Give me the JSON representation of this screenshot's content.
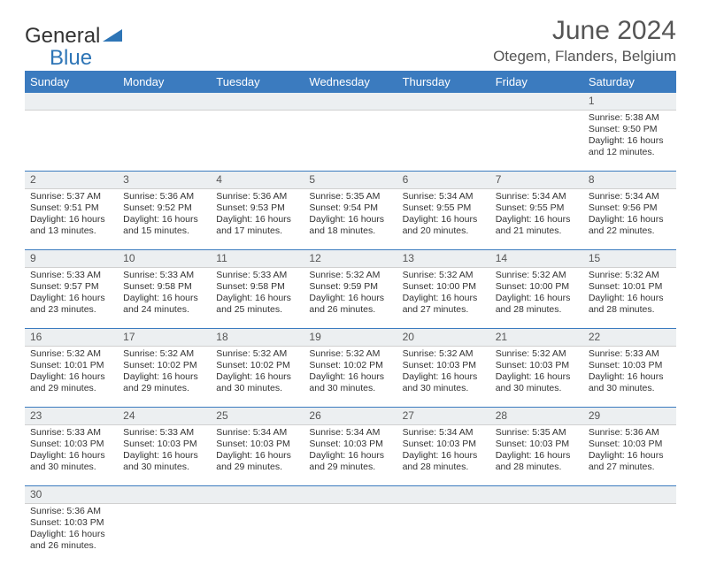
{
  "logo": {
    "text1": "General",
    "text2": "Blue"
  },
  "title": "June 2024",
  "location": "Otegem, Flanders, Belgium",
  "colors": {
    "header_bg": "#3b7bbf",
    "header_text": "#ffffff",
    "daynum_bg": "#eceff1",
    "row_divider": "#3b7bbf",
    "text": "#333333",
    "logo_blue": "#2e75b6"
  },
  "weekdays": [
    "Sunday",
    "Monday",
    "Tuesday",
    "Wednesday",
    "Thursday",
    "Friday",
    "Saturday"
  ],
  "weeks": [
    [
      null,
      null,
      null,
      null,
      null,
      null,
      {
        "n": "1",
        "sr": "5:38 AM",
        "ss": "9:50 PM",
        "dl": "16 hours and 12 minutes."
      }
    ],
    [
      {
        "n": "2",
        "sr": "5:37 AM",
        "ss": "9:51 PM",
        "dl": "16 hours and 13 minutes."
      },
      {
        "n": "3",
        "sr": "5:36 AM",
        "ss": "9:52 PM",
        "dl": "16 hours and 15 minutes."
      },
      {
        "n": "4",
        "sr": "5:36 AM",
        "ss": "9:53 PM",
        "dl": "16 hours and 17 minutes."
      },
      {
        "n": "5",
        "sr": "5:35 AM",
        "ss": "9:54 PM",
        "dl": "16 hours and 18 minutes."
      },
      {
        "n": "6",
        "sr": "5:34 AM",
        "ss": "9:55 PM",
        "dl": "16 hours and 20 minutes."
      },
      {
        "n": "7",
        "sr": "5:34 AM",
        "ss": "9:55 PM",
        "dl": "16 hours and 21 minutes."
      },
      {
        "n": "8",
        "sr": "5:34 AM",
        "ss": "9:56 PM",
        "dl": "16 hours and 22 minutes."
      }
    ],
    [
      {
        "n": "9",
        "sr": "5:33 AM",
        "ss": "9:57 PM",
        "dl": "16 hours and 23 minutes."
      },
      {
        "n": "10",
        "sr": "5:33 AM",
        "ss": "9:58 PM",
        "dl": "16 hours and 24 minutes."
      },
      {
        "n": "11",
        "sr": "5:33 AM",
        "ss": "9:58 PM",
        "dl": "16 hours and 25 minutes."
      },
      {
        "n": "12",
        "sr": "5:32 AM",
        "ss": "9:59 PM",
        "dl": "16 hours and 26 minutes."
      },
      {
        "n": "13",
        "sr": "5:32 AM",
        "ss": "10:00 PM",
        "dl": "16 hours and 27 minutes."
      },
      {
        "n": "14",
        "sr": "5:32 AM",
        "ss": "10:00 PM",
        "dl": "16 hours and 28 minutes."
      },
      {
        "n": "15",
        "sr": "5:32 AM",
        "ss": "10:01 PM",
        "dl": "16 hours and 28 minutes."
      }
    ],
    [
      {
        "n": "16",
        "sr": "5:32 AM",
        "ss": "10:01 PM",
        "dl": "16 hours and 29 minutes."
      },
      {
        "n": "17",
        "sr": "5:32 AM",
        "ss": "10:02 PM",
        "dl": "16 hours and 29 minutes."
      },
      {
        "n": "18",
        "sr": "5:32 AM",
        "ss": "10:02 PM",
        "dl": "16 hours and 30 minutes."
      },
      {
        "n": "19",
        "sr": "5:32 AM",
        "ss": "10:02 PM",
        "dl": "16 hours and 30 minutes."
      },
      {
        "n": "20",
        "sr": "5:32 AM",
        "ss": "10:03 PM",
        "dl": "16 hours and 30 minutes."
      },
      {
        "n": "21",
        "sr": "5:32 AM",
        "ss": "10:03 PM",
        "dl": "16 hours and 30 minutes."
      },
      {
        "n": "22",
        "sr": "5:33 AM",
        "ss": "10:03 PM",
        "dl": "16 hours and 30 minutes."
      }
    ],
    [
      {
        "n": "23",
        "sr": "5:33 AM",
        "ss": "10:03 PM",
        "dl": "16 hours and 30 minutes."
      },
      {
        "n": "24",
        "sr": "5:33 AM",
        "ss": "10:03 PM",
        "dl": "16 hours and 30 minutes."
      },
      {
        "n": "25",
        "sr": "5:34 AM",
        "ss": "10:03 PM",
        "dl": "16 hours and 29 minutes."
      },
      {
        "n": "26",
        "sr": "5:34 AM",
        "ss": "10:03 PM",
        "dl": "16 hours and 29 minutes."
      },
      {
        "n": "27",
        "sr": "5:34 AM",
        "ss": "10:03 PM",
        "dl": "16 hours and 28 minutes."
      },
      {
        "n": "28",
        "sr": "5:35 AM",
        "ss": "10:03 PM",
        "dl": "16 hours and 28 minutes."
      },
      {
        "n": "29",
        "sr": "5:36 AM",
        "ss": "10:03 PM",
        "dl": "16 hours and 27 minutes."
      }
    ],
    [
      {
        "n": "30",
        "sr": "5:36 AM",
        "ss": "10:03 PM",
        "dl": "16 hours and 26 minutes."
      },
      null,
      null,
      null,
      null,
      null,
      null
    ]
  ],
  "labels": {
    "sunrise": "Sunrise:",
    "sunset": "Sunset:",
    "daylight": "Daylight:"
  }
}
